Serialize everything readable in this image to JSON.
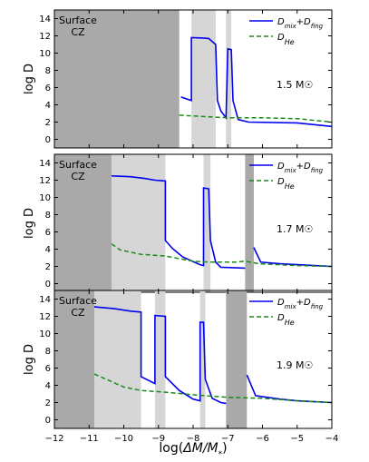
{
  "figure": {
    "xlabel": "log(ΔM/M*)",
    "ylabel": "log D",
    "xticks": [
      "−12",
      "−11",
      "−10",
      "−9",
      "−8",
      "−7",
      "−6",
      "−5",
      "−4"
    ],
    "yticks": [
      "0",
      "2",
      "4",
      "6",
      "8",
      "10",
      "12",
      "14"
    ]
  },
  "colors": {
    "dmix": "#0000ee",
    "dhe": "#1a8a1a",
    "shade_dark": "#a9a9a9",
    "shade_light": "#d6d6d6"
  },
  "chart_data": [
    {
      "type": "line",
      "xlim": [
        -12,
        -4
      ],
      "ylim": [
        -1,
        15
      ],
      "annotation": "Surface CZ",
      "mass_label": "1.5 M☉",
      "legend": {
        "placement": "top-right",
        "entries": [
          "D_mix+D_fing",
          "D_He"
        ]
      },
      "shaded": [
        {
          "from": -12.0,
          "to": -8.4,
          "shade": "dark"
        },
        {
          "from": -8.05,
          "to": -7.35,
          "shade": "light"
        },
        {
          "from": -7.05,
          "to": -6.9,
          "shade": "light"
        }
      ],
      "series": [
        {
          "name": "D_mix+D_fing",
          "segments": [
            [
              [
                -8.35,
                4.9
              ],
              [
                -8.05,
                4.5
              ],
              [
                -8.05,
                11.8
              ],
              [
                -7.7,
                11.75
              ],
              [
                -7.55,
                11.7
              ],
              [
                -7.35,
                11.0
              ],
              [
                -7.3,
                4.5
              ],
              [
                -7.2,
                3.3
              ],
              [
                -7.05,
                2.5
              ],
              [
                -7.0,
                10.5
              ],
              [
                -6.9,
                10.4
              ],
              [
                -6.85,
                4.5
              ],
              [
                -6.7,
                2.3
              ],
              [
                -6.4,
                2.0
              ],
              [
                -5.0,
                1.9
              ],
              [
                -4.0,
                1.5
              ]
            ]
          ]
        },
        {
          "name": "D_He",
          "segments": [
            [
              [
                -8.4,
                2.8
              ],
              [
                -7.5,
                2.6
              ],
              [
                -7.0,
                2.5
              ],
              [
                -6.0,
                2.5
              ],
              [
                -5.0,
                2.4
              ],
              [
                -4.0,
                2.0
              ]
            ]
          ]
        }
      ]
    },
    {
      "type": "line",
      "xlim": [
        -12,
        -4
      ],
      "ylim": [
        -1,
        15
      ],
      "annotation": "Surface CZ",
      "mass_label": "1.7 M☉",
      "legend": {
        "placement": "top-right",
        "entries": [
          "D_mix+D_fing",
          "D_He"
        ]
      },
      "shaded": [
        {
          "from": -12.0,
          "to": -10.35,
          "shade": "dark"
        },
        {
          "from": -10.35,
          "to": -8.8,
          "shade": "light"
        },
        {
          "from": -7.7,
          "to": -7.5,
          "shade": "light"
        },
        {
          "from": -6.5,
          "to": -6.25,
          "shade": "dark"
        }
      ],
      "series": [
        {
          "name": "D_mix+D_fing",
          "segments": [
            [
              [
                -10.35,
                12.5
              ],
              [
                -9.8,
                12.4
              ],
              [
                -9.4,
                12.2
              ],
              [
                -9.1,
                12.0
              ],
              [
                -8.8,
                11.9
              ],
              [
                -8.8,
                5.0
              ],
              [
                -8.6,
                4.1
              ],
              [
                -8.3,
                3.1
              ],
              [
                -7.8,
                2.2
              ],
              [
                -7.7,
                2.1
              ],
              [
                -7.7,
                11.1
              ],
              [
                -7.55,
                11.0
              ],
              [
                -7.5,
                5.0
              ],
              [
                -7.35,
                2.5
              ],
              [
                -7.2,
                1.9
              ],
              [
                -6.5,
                1.8
              ]
            ],
            [
              [
                -6.25,
                4.2
              ],
              [
                -6.05,
                2.5
              ],
              [
                -5.5,
                2.3
              ],
              [
                -5.0,
                2.2
              ],
              [
                -4.0,
                2.0
              ]
            ]
          ]
        },
        {
          "name": "D_He",
          "segments": [
            [
              [
                -10.35,
                4.6
              ],
              [
                -10.1,
                3.9
              ],
              [
                -9.5,
                3.4
              ],
              [
                -8.8,
                3.2
              ],
              [
                -8.0,
                2.6
              ],
              [
                -7.5,
                2.5
              ],
              [
                -6.8,
                2.5
              ],
              [
                -6.5,
                2.6
              ],
              [
                -6.1,
                2.3
              ],
              [
                -5.0,
                2.1
              ],
              [
                -4.0,
                2.0
              ]
            ]
          ]
        }
      ]
    },
    {
      "type": "line",
      "xlim": [
        -12,
        -4
      ],
      "ylim": [
        -1,
        15
      ],
      "annotation": "Surface CZ",
      "mass_label": "1.9 M☉",
      "legend": {
        "placement": "top-right",
        "entries": [
          "D_mix+D_fing",
          "D_He"
        ]
      },
      "shaded": [
        {
          "from": -12.0,
          "to": -10.85,
          "shade": "dark"
        },
        {
          "from": -10.85,
          "to": -9.5,
          "shade": "light"
        },
        {
          "from": -9.1,
          "to": -8.8,
          "shade": "light"
        },
        {
          "from": -7.8,
          "to": -7.65,
          "shade": "light"
        },
        {
          "from": -7.05,
          "to": -6.45,
          "shade": "dark"
        }
      ],
      "series": [
        {
          "name": "D_mix+D_fing",
          "segments": [
            [
              [
                -10.85,
                13.1
              ],
              [
                -10.3,
                12.9
              ],
              [
                -9.8,
                12.6
              ],
              [
                -9.5,
                12.5
              ],
              [
                -9.5,
                5.0
              ],
              [
                -9.1,
                4.2
              ],
              [
                -9.1,
                12.1
              ],
              [
                -8.8,
                12.0
              ],
              [
                -8.8,
                5.0
              ],
              [
                -8.6,
                4.2
              ],
              [
                -8.4,
                3.4
              ],
              [
                -8.0,
                2.4
              ],
              [
                -7.8,
                2.2
              ],
              [
                -7.8,
                11.3
              ],
              [
                -7.7,
                11.3
              ],
              [
                -7.65,
                4.7
              ],
              [
                -7.45,
                2.5
              ],
              [
                -7.2,
                2.0
              ],
              [
                -7.05,
                1.9
              ]
            ],
            [
              [
                -6.45,
                5.2
              ],
              [
                -6.2,
                2.8
              ],
              [
                -5.5,
                2.4
              ],
              [
                -5.0,
                2.2
              ],
              [
                -4.0,
                2.0
              ]
            ]
          ]
        },
        {
          "name": "D_He",
          "segments": [
            [
              [
                -10.85,
                5.3
              ],
              [
                -10.5,
                4.7
              ],
              [
                -10.0,
                3.8
              ],
              [
                -9.5,
                3.4
              ],
              [
                -8.8,
                3.2
              ],
              [
                -8.0,
                2.9
              ],
              [
                -7.0,
                2.6
              ],
              [
                -6.0,
                2.5
              ],
              [
                -5.0,
                2.2
              ],
              [
                -4.0,
                2.0
              ]
            ]
          ]
        }
      ]
    }
  ]
}
